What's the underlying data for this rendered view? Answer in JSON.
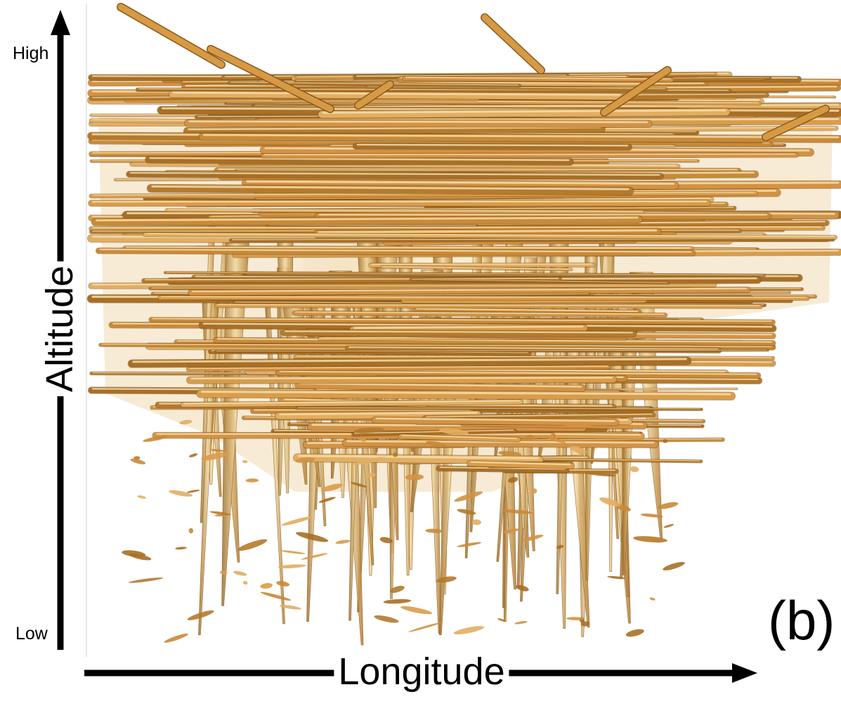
{
  "figure": {
    "panel_label": "(b)",
    "y_axis": {
      "title": "Altitude",
      "high_label": "High",
      "low_label": "Low"
    },
    "x_axis": {
      "title": "Longitude"
    }
  },
  "colors": {
    "structure_light": "#f2d9a2",
    "structure_mid": "#d69a45",
    "structure_dark": "#8a5a1c",
    "axis": "#000000",
    "background": "#ffffff"
  }
}
